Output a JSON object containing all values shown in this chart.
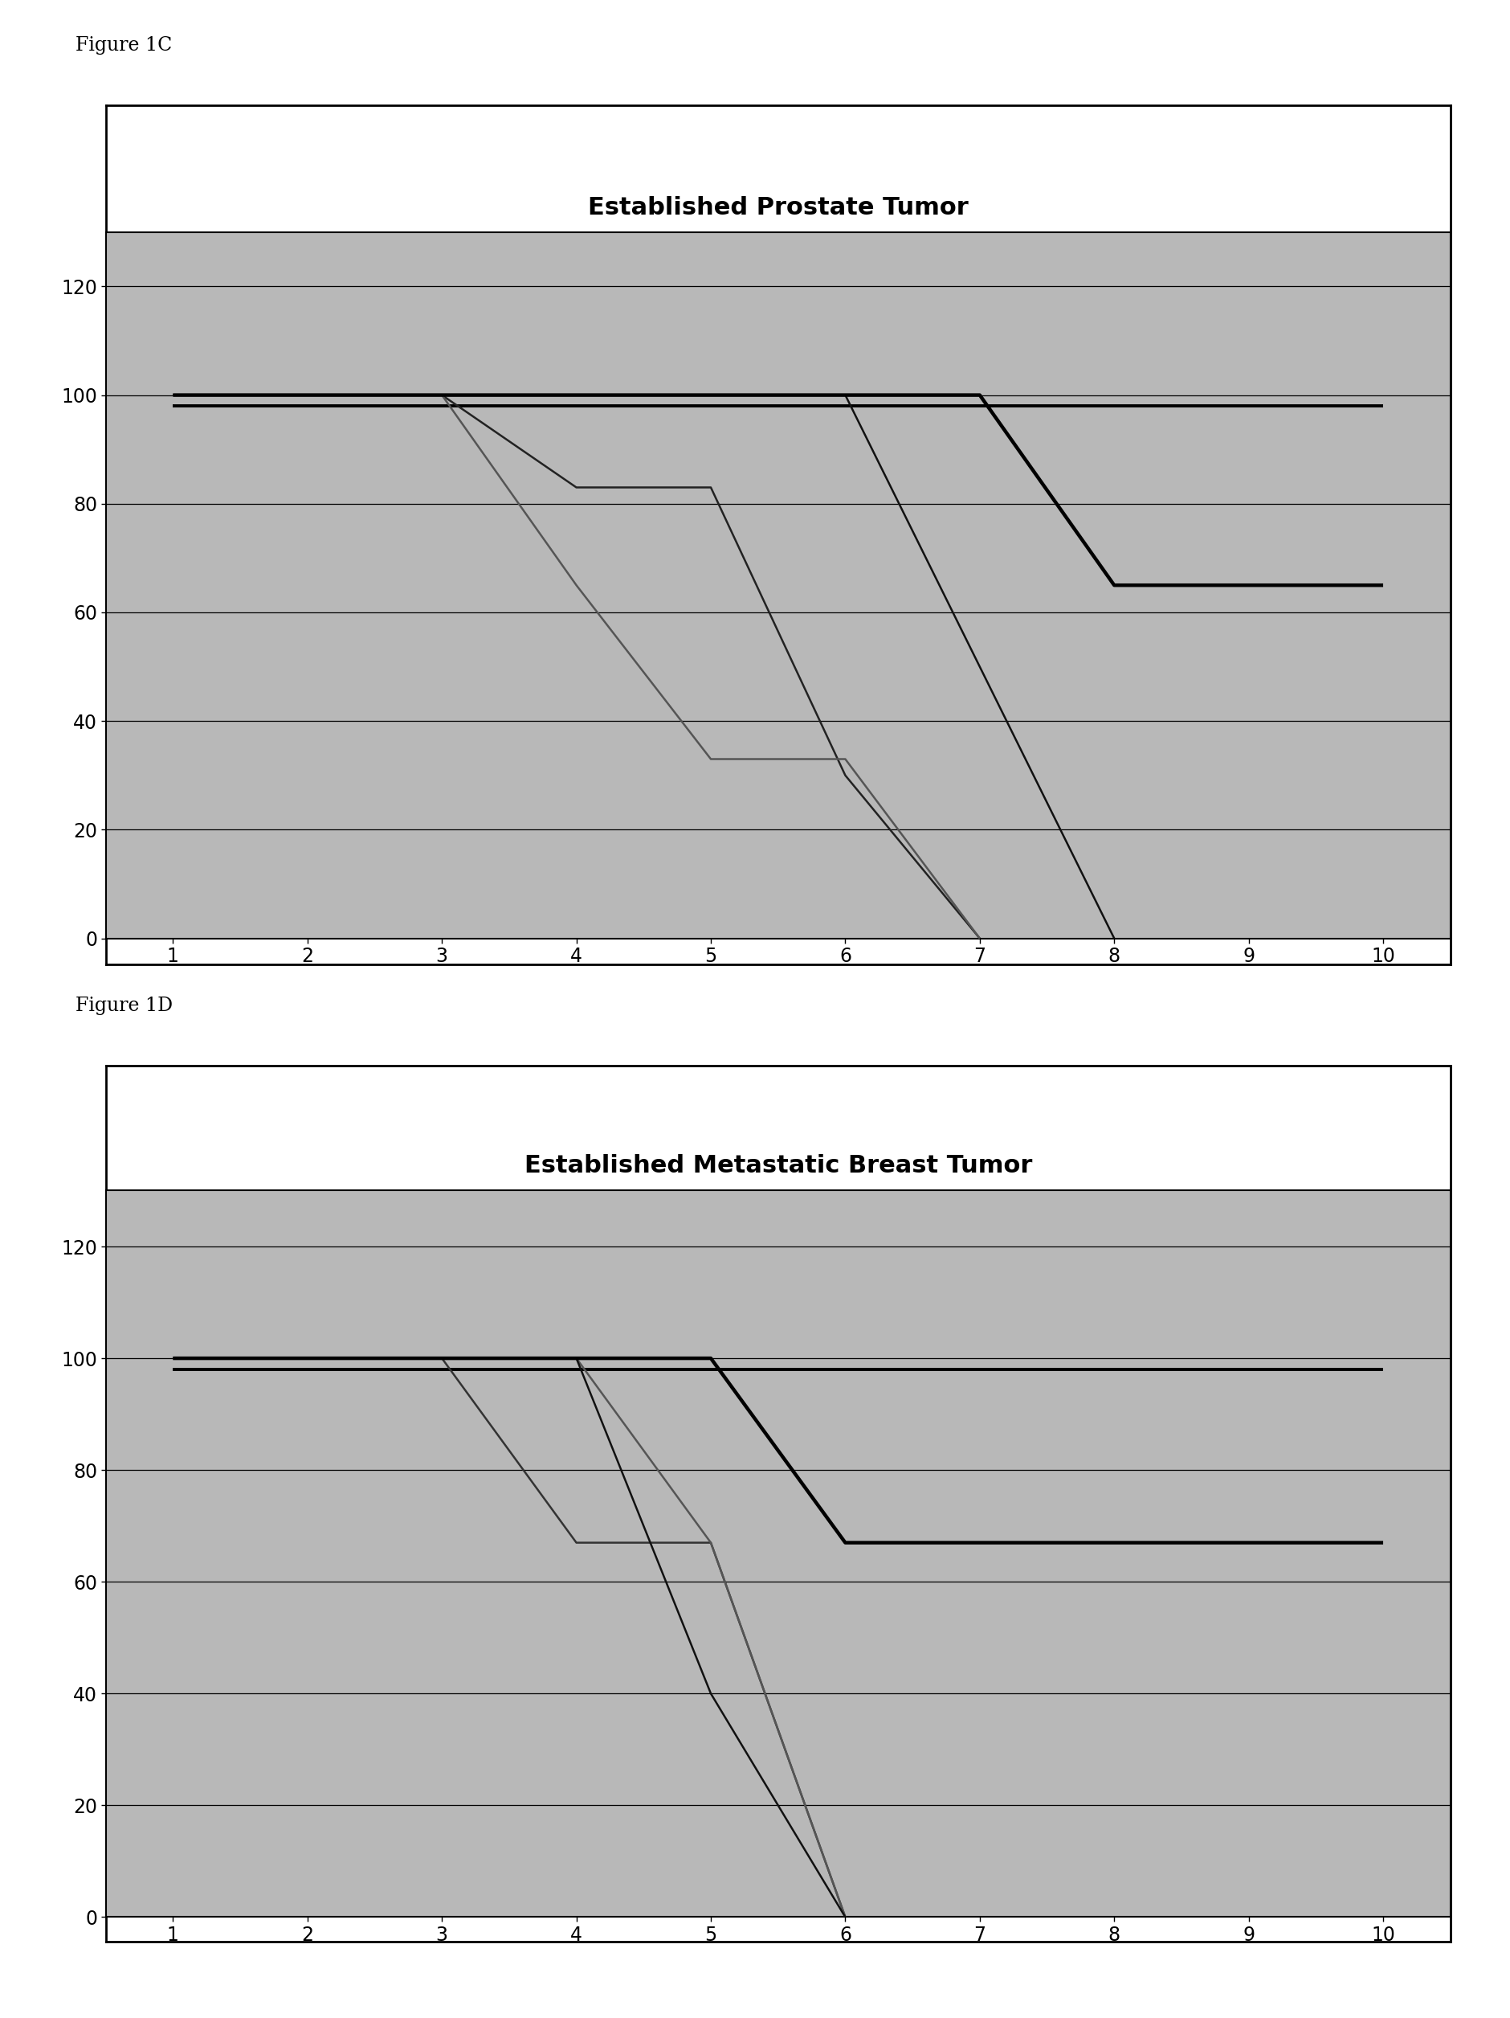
{
  "figure1C": {
    "title": "Established Prostate Tumor",
    "lines": [
      {
        "x": [
          1,
          2,
          3,
          4,
          5,
          6,
          7,
          8,
          9,
          10
        ],
        "y": [
          98,
          98,
          98,
          98,
          98,
          98,
          98,
          98,
          98,
          98
        ],
        "lw": 2.8,
        "color": "#000000",
        "zorder": 3
      },
      {
        "x": [
          1,
          2,
          3,
          4,
          5,
          6,
          7
        ],
        "y": [
          100,
          100,
          100,
          83,
          83,
          30,
          0
        ],
        "lw": 1.8,
        "color": "#222222",
        "zorder": 4
      },
      {
        "x": [
          1,
          2,
          3,
          4,
          5,
          6,
          7
        ],
        "y": [
          100,
          100,
          100,
          65,
          33,
          33,
          0
        ],
        "lw": 1.8,
        "color": "#555555",
        "zorder": 4
      },
      {
        "x": [
          1,
          2,
          3,
          4,
          5,
          6,
          7,
          8
        ],
        "y": [
          100,
          100,
          100,
          100,
          100,
          100,
          50,
          0
        ],
        "lw": 1.8,
        "color": "#111111",
        "zorder": 4
      },
      {
        "x": [
          1,
          2,
          3,
          4,
          5,
          6,
          7,
          8,
          9,
          10
        ],
        "y": [
          100,
          100,
          100,
          100,
          100,
          100,
          100,
          65,
          65,
          65
        ],
        "lw": 3.2,
        "color": "#000000",
        "zorder": 5
      }
    ],
    "xlim": [
      0.5,
      10.5
    ],
    "ylim": [
      0,
      130
    ],
    "yticks": [
      0,
      20,
      40,
      60,
      80,
      100,
      120
    ],
    "xticks": [
      1,
      2,
      3,
      4,
      5,
      6,
      7,
      8,
      9,
      10
    ],
    "label": "Figure 1C"
  },
  "figure1D": {
    "title": "Established Metastatic Breast Tumor",
    "lines": [
      {
        "x": [
          1,
          2,
          3,
          4,
          5,
          6,
          7,
          8,
          9,
          10
        ],
        "y": [
          98,
          98,
          98,
          98,
          98,
          98,
          98,
          98,
          98,
          98
        ],
        "lw": 2.8,
        "color": "#000000",
        "zorder": 3
      },
      {
        "x": [
          1,
          2,
          3,
          4,
          5,
          6
        ],
        "y": [
          100,
          100,
          100,
          67,
          67,
          0
        ],
        "lw": 1.8,
        "color": "#333333",
        "zorder": 4
      },
      {
        "x": [
          1,
          2,
          3,
          4,
          5,
          6
        ],
        "y": [
          100,
          100,
          100,
          100,
          67,
          0
        ],
        "lw": 1.8,
        "color": "#555555",
        "zorder": 4
      },
      {
        "x": [
          1,
          2,
          3,
          4,
          5,
          6
        ],
        "y": [
          100,
          100,
          100,
          100,
          40,
          0
        ],
        "lw": 1.8,
        "color": "#111111",
        "zorder": 4
      },
      {
        "x": [
          1,
          2,
          3,
          4,
          5,
          6,
          7,
          8,
          9,
          10
        ],
        "y": [
          100,
          100,
          100,
          100,
          100,
          67,
          67,
          67,
          67,
          67
        ],
        "lw": 3.2,
        "color": "#000000",
        "zorder": 5
      }
    ],
    "xlim": [
      0.5,
      10.5
    ],
    "ylim": [
      0,
      130
    ],
    "yticks": [
      0,
      20,
      40,
      60,
      80,
      100,
      120
    ],
    "xticks": [
      1,
      2,
      3,
      4,
      5,
      6,
      7,
      8,
      9,
      10
    ],
    "label": "Figure 1D"
  },
  "bg_color": "#b8b8b8",
  "title_area_color": "#ffffff",
  "outer_box_color": "#000000",
  "grid_color": "#000000",
  "fig_label_fontsize": 17,
  "title_fontsize": 22,
  "tick_fontsize": 17
}
